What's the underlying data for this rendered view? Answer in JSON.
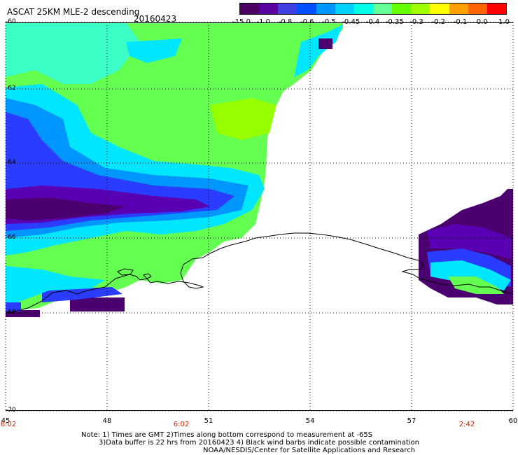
{
  "header": {
    "title": "ASCAT 25KM MLE-2 descending",
    "date": "20160423"
  },
  "colorbar": {
    "ticks": [
      "-15.0",
      "-1.0",
      "-0.8",
      "-0.6",
      "-0.5",
      "-0.45",
      "-0.4",
      "-0.35",
      "-0.3",
      "-0.2",
      "-0.1",
      "0.0",
      "1.0"
    ],
    "colors": [
      "#4b0064",
      "#5a00a0",
      "#4040e0",
      "#0050ff",
      "#0096ff",
      "#00d2ff",
      "#00ffe6",
      "#64ff96",
      "#64ff00",
      "#a0ff00",
      "#ffff00",
      "#ffa000",
      "#ff6400",
      "#ff0000"
    ]
  },
  "map": {
    "lat_labels": [
      "-60",
      "-62",
      "-64",
      "-66",
      "-68",
      "-70"
    ],
    "lon_labels": [
      "45",
      "48",
      "51",
      "54",
      "57",
      "60"
    ],
    "time_labels": [
      "6:02",
      "6:02",
      "2:42"
    ],
    "colors": {
      "deep": "#4b0070",
      "purple": "#5a00b4",
      "blue": "#2a3cff",
      "mid_blue": "#0096ff",
      "cyan": "#00e6ff",
      "aqua": "#3cffc8",
      "green": "#64ff50",
      "lime": "#96ff00"
    }
  },
  "notes": {
    "line1": "Note: 1) Times are GMT 2)Times along bottom correspond to measurement at -65S",
    "line2": "3)Data buffer is 22 hrs from 20160423 4) Black wind barbs indicate possible contamination",
    "line3": "NOAA/NESDIS/Center for Satellite Applications and Research"
  }
}
